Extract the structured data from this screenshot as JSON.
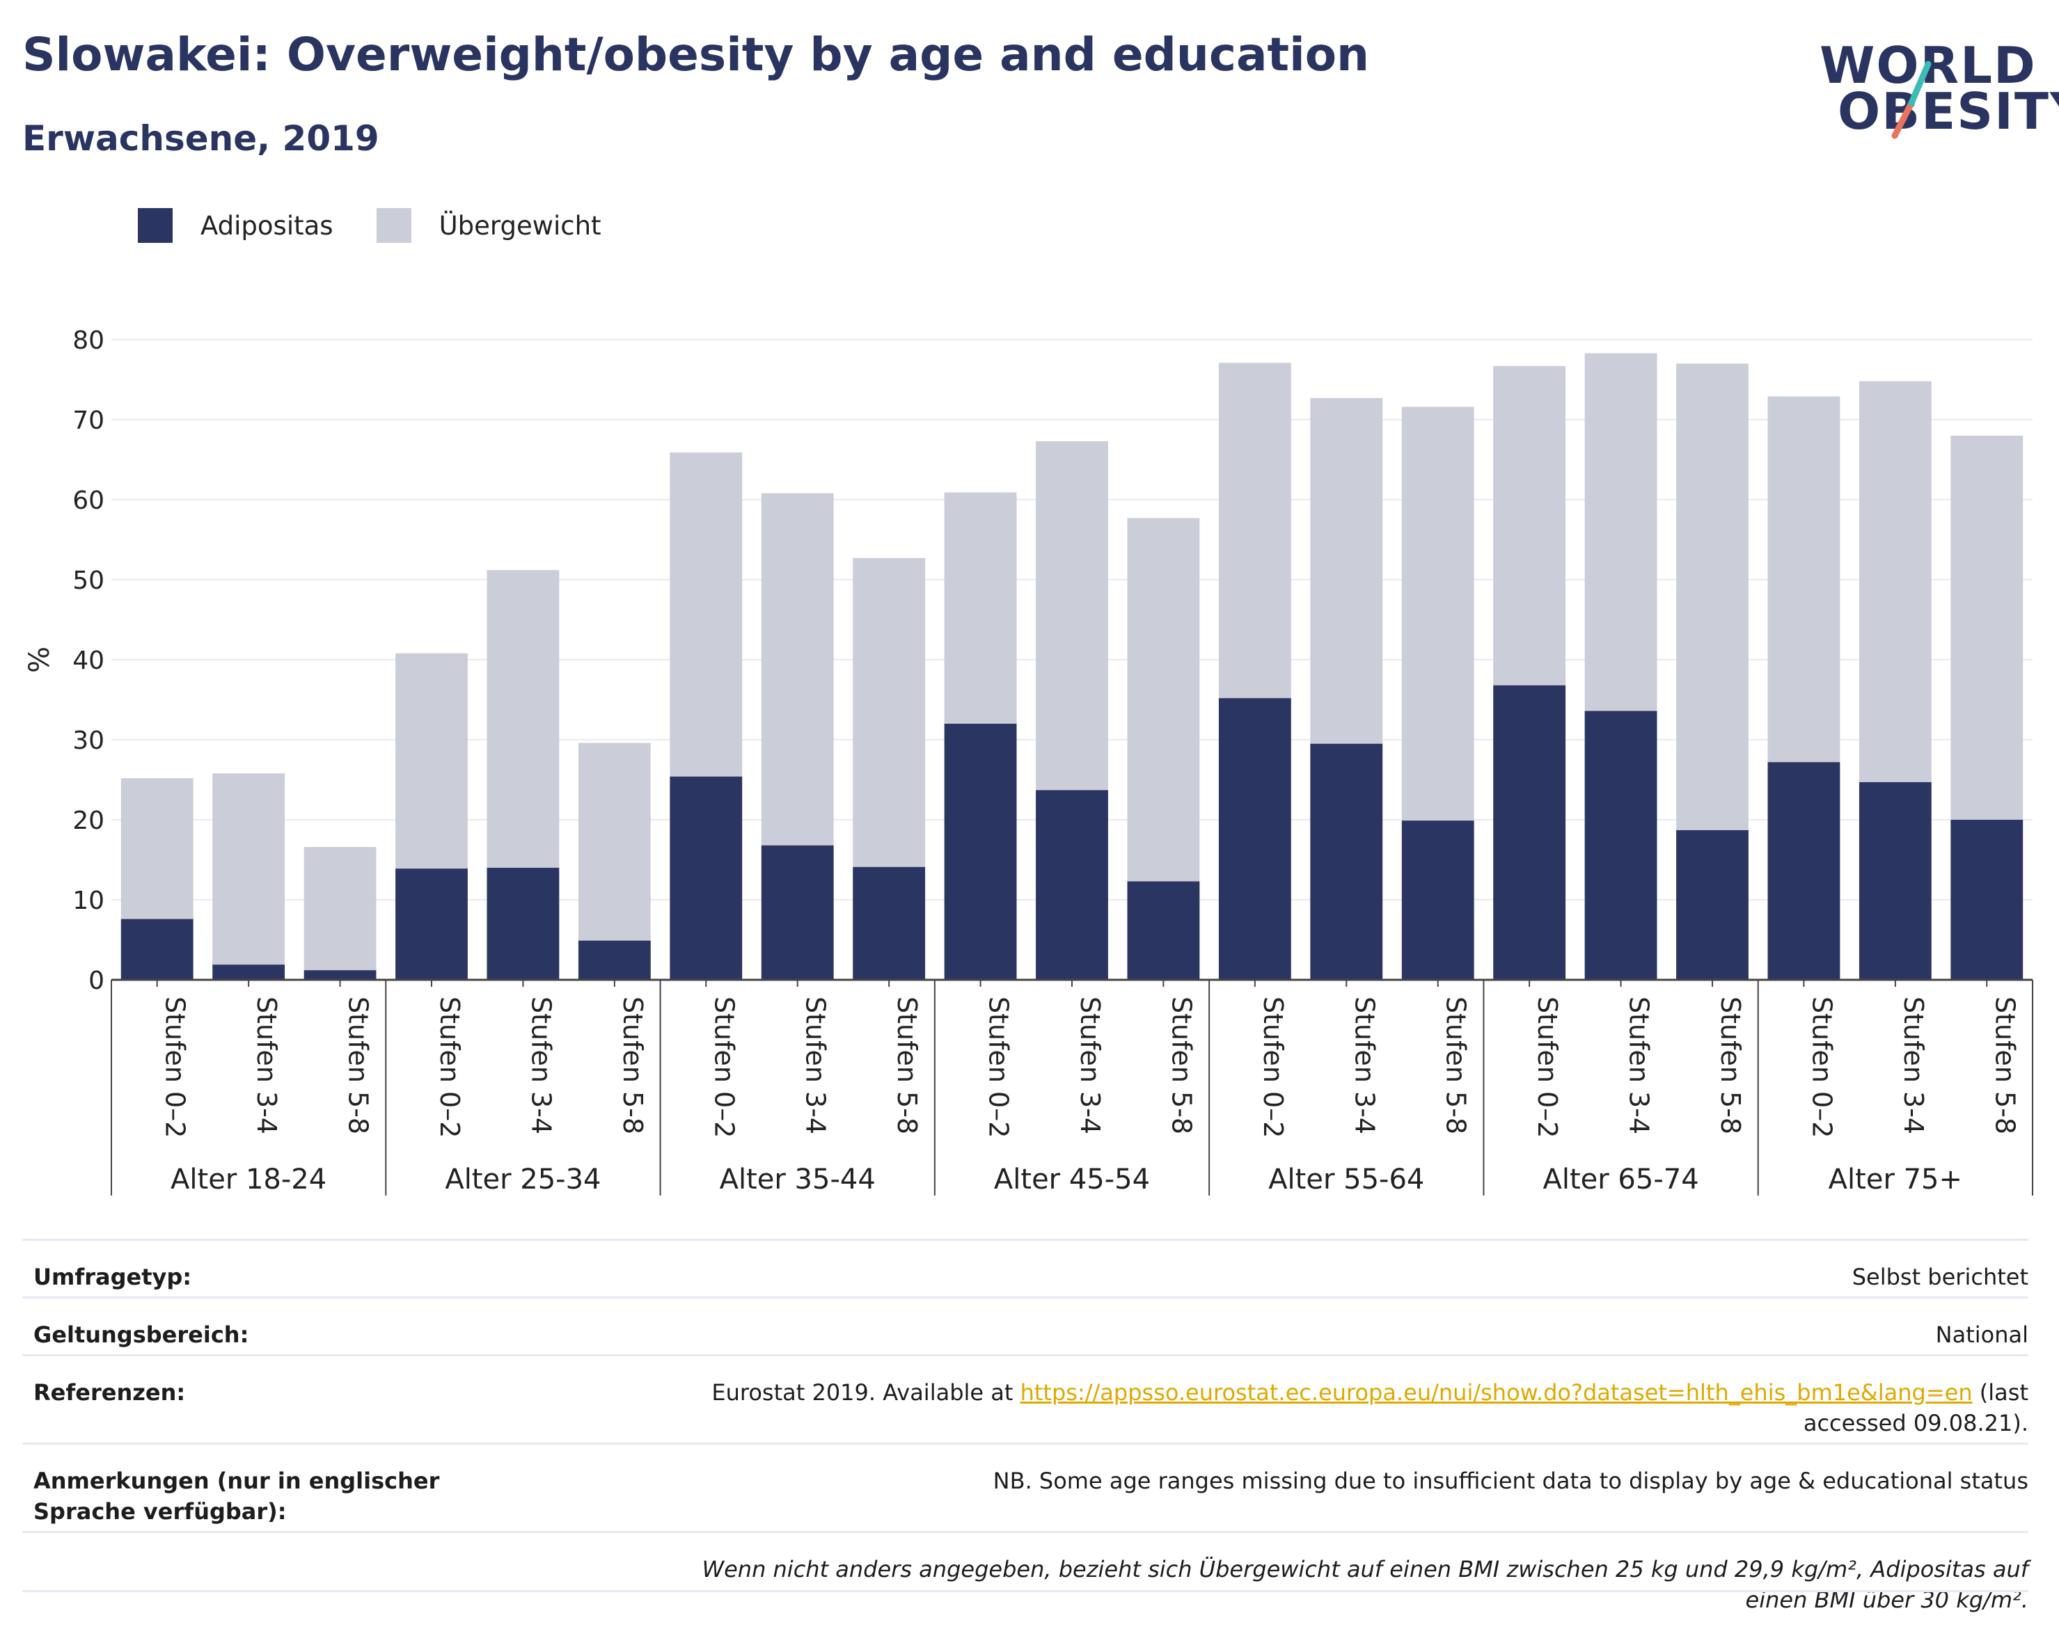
{
  "header": {
    "title": "Slowakei: Overweight/obesity by age and education",
    "subtitle": "Erwachsene, 2019"
  },
  "logo": {
    "line1": "WORLD",
    "line2": "OBESITY"
  },
  "colors": {
    "obesity": "#2a3562",
    "overweight": "#cbcdd8",
    "text": "#2a3460",
    "accent_teal": "#3bbcb4",
    "accent_coral": "#e8745f",
    "link": "#e0a800"
  },
  "legend": [
    {
      "label": "Adipositas",
      "color": "#2a3562"
    },
    {
      "label": "Übergewicht",
      "color": "#cbcdd8"
    }
  ],
  "chart_data": {
    "type": "bar",
    "stacked": true,
    "ylabel": "%",
    "ylim": [
      0,
      80
    ],
    "yticks": [
      0,
      10,
      20,
      30,
      40,
      50,
      60,
      70,
      80
    ],
    "grid": true,
    "legend_position": "top-left",
    "groups": [
      "Alter 18-24",
      "Alter 25-34",
      "Alter 35-44",
      "Alter 45-54",
      "Alter 55-64",
      "Alter 65-74",
      "Alter 75+"
    ],
    "subcategories": [
      "Stufen 0–2",
      "Stufen 3-4",
      "Stufen 5-8"
    ],
    "series": [
      {
        "name": "Adipositas",
        "values": [
          7.6,
          1.9,
          1.2,
          13.9,
          14.0,
          4.9,
          25.4,
          16.8,
          14.1,
          32.0,
          23.7,
          12.3,
          35.2,
          29.5,
          19.9,
          36.8,
          33.6,
          18.7,
          27.2,
          24.7,
          20.0
        ]
      },
      {
        "name": "Übergewicht",
        "values": [
          17.6,
          23.9,
          15.4,
          26.9,
          37.2,
          24.7,
          40.5,
          44.0,
          38.6,
          28.9,
          43.6,
          45.4,
          41.9,
          43.2,
          51.7,
          39.9,
          44.7,
          58.3,
          45.7,
          50.1,
          48.0
        ]
      }
    ]
  },
  "footer": {
    "rows": [
      {
        "key": "Umfragetyp:",
        "value": "Selbst berichtet"
      },
      {
        "key": "Geltungsbereich:",
        "value": "National"
      },
      {
        "key": "Referenzen:",
        "value_pre": "Eurostat 2019. Available at ",
        "link": "https://appsso.eurostat.ec.europa.eu/nui/show.do?dataset=hlth_ehis_bm1e&lang=en",
        "value_post": " (last accessed 09.08.21)."
      },
      {
        "key": "Anmerkungen (nur in englischer Sprache verfügbar):",
        "value": "NB. Some age ranges missing due to insufficient data to display by age & educational status"
      }
    ],
    "note": "Wenn nicht anders angegeben, bezieht sich Übergewicht auf einen BMI zwischen 25 kg und 29,9 kg/m², Adipositas auf einen BMI über 30 kg/m²."
  }
}
